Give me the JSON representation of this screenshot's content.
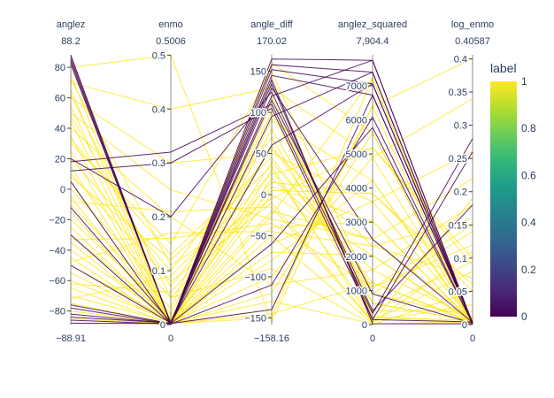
{
  "chart_data": {
    "type": "parcoords",
    "colorscale": "viridis",
    "colorscale_stops": [
      "#440154",
      "#482878",
      "#3e4989",
      "#31688e",
      "#26828e",
      "#1f9e89",
      "#35b779",
      "#6ece58",
      "#b5de2b",
      "#fde725"
    ],
    "color_by": "label",
    "colorbar": {
      "title": "label",
      "ticks": [
        "0",
        "0.2",
        "0.4",
        "0.6",
        "0.8",
        "1"
      ],
      "range": [
        0,
        1
      ]
    },
    "dimensions": [
      {
        "name": "anglez",
        "range": [
          -88.91,
          88.2
        ],
        "range_labels": {
          "max": "88.2",
          "min": "−88.91"
        },
        "ticks": [
          {
            "v": 80,
            "t": "80"
          },
          {
            "v": 60,
            "t": "60"
          },
          {
            "v": 40,
            "t": "40"
          },
          {
            "v": 20,
            "t": "20"
          },
          {
            "v": 0,
            "t": "0"
          },
          {
            "v": -20,
            "t": "−20"
          },
          {
            "v": -40,
            "t": "−40"
          },
          {
            "v": -60,
            "t": "−60"
          },
          {
            "v": -80,
            "t": "−80"
          }
        ]
      },
      {
        "name": "enmo",
        "range": [
          0,
          0.5006
        ],
        "range_labels": {
          "max": "0.5006",
          "min": "0"
        },
        "ticks": [
          {
            "v": 0.5,
            "t": "0.5"
          },
          {
            "v": 0.4,
            "t": "0.4"
          },
          {
            "v": 0.3,
            "t": "0.3"
          },
          {
            "v": 0.2,
            "t": "0.2"
          },
          {
            "v": 0.1,
            "t": "0.1"
          },
          {
            "v": 0,
            "t": "0"
          }
        ]
      },
      {
        "name": "angle_diff",
        "range": [
          -158.16,
          170.02
        ],
        "range_labels": {
          "max": "170.02",
          "min": "−158.16"
        },
        "ticks": [
          {
            "v": 150,
            "t": "150"
          },
          {
            "v": 100,
            "t": "100"
          },
          {
            "v": 50,
            "t": "50"
          },
          {
            "v": 0,
            "t": "0"
          },
          {
            "v": -50,
            "t": "−50"
          },
          {
            "v": -100,
            "t": "−100"
          },
          {
            "v": -150,
            "t": "−150"
          }
        ]
      },
      {
        "name": "anglez_squared",
        "range": [
          0,
          7904.4
        ],
        "range_labels": {
          "max": "7,904.4",
          "min": "0"
        },
        "ticks": [
          {
            "v": 7000,
            "t": "7000"
          },
          {
            "v": 6000,
            "t": "6000"
          },
          {
            "v": 5000,
            "t": "5000"
          },
          {
            "v": 4000,
            "t": "4000"
          },
          {
            "v": 3000,
            "t": "3000"
          },
          {
            "v": 2000,
            "t": "2000"
          },
          {
            "v": 1000,
            "t": "1000"
          },
          {
            "v": 0,
            "t": "0"
          }
        ]
      },
      {
        "name": "log_enmo",
        "range": [
          0,
          0.40587
        ],
        "range_labels": {
          "max": "0.40587",
          "min": "0"
        },
        "ticks": [
          {
            "v": 0.4,
            "t": "0.4"
          },
          {
            "v": 0.35,
            "t": "0.35"
          },
          {
            "v": 0.3,
            "t": "0.3"
          },
          {
            "v": 0.25,
            "t": "0.25"
          },
          {
            "v": 0.2,
            "t": "0.2"
          },
          {
            "v": 0.15,
            "t": "0.15"
          },
          {
            "v": 0.1,
            "t": "0.1"
          },
          {
            "v": 0.05,
            "t": "0.05"
          },
          {
            "v": 0,
            "t": "0"
          }
        ]
      }
    ],
    "lines": [
      {
        "values": [
          -85,
          0.002,
          -150,
          7225,
          0.002
        ],
        "label": 1
      },
      {
        "values": [
          -80,
          0.003,
          -140,
          6400,
          0.003
        ],
        "label": 1
      },
      {
        "values": [
          -75,
          0.001,
          -120,
          5625,
          0.001
        ],
        "label": 1
      },
      {
        "values": [
          -70,
          0.004,
          -100,
          4900,
          0.004
        ],
        "label": 1
      },
      {
        "values": [
          -65,
          0.002,
          -80,
          4225,
          0.002
        ],
        "label": 1
      },
      {
        "values": [
          -60,
          0.006,
          -60,
          3600,
          0.006
        ],
        "label": 1
      },
      {
        "values": [
          -55,
          0.003,
          -40,
          3025,
          0.003
        ],
        "label": 1
      },
      {
        "values": [
          -50,
          0.008,
          -20,
          2500,
          0.008
        ],
        "label": 1
      },
      {
        "values": [
          -45,
          0.002,
          0,
          2025,
          0.002
        ],
        "label": 1
      },
      {
        "values": [
          -40,
          0.01,
          20,
          1600,
          0.01
        ],
        "label": 1
      },
      {
        "values": [
          -35,
          0.004,
          40,
          1225,
          0.004
        ],
        "label": 1
      },
      {
        "values": [
          -30,
          0.012,
          60,
          900,
          0.012
        ],
        "label": 1
      },
      {
        "values": [
          -25,
          0.005,
          80,
          625,
          0.005
        ],
        "label": 1
      },
      {
        "values": [
          -20,
          0.02,
          100,
          400,
          0.02
        ],
        "label": 1
      },
      {
        "values": [
          -15,
          0.006,
          120,
          225,
          0.006
        ],
        "label": 1
      },
      {
        "values": [
          -10,
          0.03,
          140,
          100,
          0.03
        ],
        "label": 1
      },
      {
        "values": [
          -5,
          0.004,
          -130,
          25,
          0.004
        ],
        "label": 1
      },
      {
        "values": [
          0,
          0.05,
          -90,
          0,
          0.05
        ],
        "label": 1
      },
      {
        "values": [
          5,
          0.002,
          -50,
          25,
          0.002
        ],
        "label": 1
      },
      {
        "values": [
          10,
          0.08,
          -10,
          100,
          0.08
        ],
        "label": 1
      },
      {
        "values": [
          15,
          0.003,
          30,
          225,
          0.003
        ],
        "label": 1
      },
      {
        "values": [
          20,
          0.1,
          70,
          400,
          0.095
        ],
        "label": 1
      },
      {
        "values": [
          25,
          0.005,
          110,
          625,
          0.005
        ],
        "label": 1
      },
      {
        "values": [
          30,
          0.15,
          150,
          900,
          0.14
        ],
        "label": 1
      },
      {
        "values": [
          35,
          0.002,
          -145,
          1225,
          0.002
        ],
        "label": 1
      },
      {
        "values": [
          40,
          0.2,
          -110,
          1600,
          0.18
        ],
        "label": 1
      },
      {
        "values": [
          45,
          0.004,
          -70,
          2025,
          0.004
        ],
        "label": 1
      },
      {
        "values": [
          50,
          0.25,
          -30,
          2500,
          0.22
        ],
        "label": 1
      },
      {
        "values": [
          55,
          0.003,
          10,
          3025,
          0.003
        ],
        "label": 1
      },
      {
        "values": [
          60,
          0.3,
          50,
          3600,
          0.26
        ],
        "label": 1
      },
      {
        "values": [
          65,
          0.006,
          90,
          4225,
          0.006
        ],
        "label": 1
      },
      {
        "values": [
          70,
          0.4,
          130,
          4900,
          0.34
        ],
        "label": 1
      },
      {
        "values": [
          75,
          0.002,
          160,
          5625,
          0.002
        ],
        "label": 1
      },
      {
        "values": [
          80,
          0.5,
          -155,
          6400,
          0.4
        ],
        "label": 1
      },
      {
        "values": [
          85,
          0.001,
          -25,
          7225,
          0.001
        ],
        "label": 1
      },
      {
        "values": [
          62,
          0.05,
          5,
          3844,
          0.05
        ],
        "label": 1
      },
      {
        "values": [
          -62,
          0.06,
          15,
          3844,
          0.06
        ],
        "label": 1
      },
      {
        "values": [
          72,
          0.11,
          -5,
          5184,
          0.1
        ],
        "label": 1
      },
      {
        "values": [
          -72,
          0.09,
          25,
          5184,
          0.09
        ],
        "label": 1
      },
      {
        "values": [
          8,
          0.12,
          35,
          64,
          0.11
        ],
        "label": 1
      },
      {
        "values": [
          -8,
          0.21,
          -15,
          64,
          0.19
        ],
        "label": 1
      },
      {
        "values": [
          33,
          0.13,
          45,
          1089,
          0.12
        ],
        "label": 1
      },
      {
        "values": [
          -33,
          0.16,
          -35,
          1089,
          0.15
        ],
        "label": 1
      },
      {
        "values": [
          48,
          0.07,
          55,
          2304,
          0.07
        ],
        "label": 1
      },
      {
        "values": [
          -48,
          0.17,
          -45,
          2304,
          0.16
        ],
        "label": 1
      },
      {
        "values": [
          88,
          0.001,
          165,
          7744,
          0.001
        ],
        "label": 0
      },
      {
        "values": [
          86,
          0.002,
          158,
          7396,
          0.002
        ],
        "label": 0
      },
      {
        "values": [
          84,
          0.001,
          152,
          7056,
          0.001
        ],
        "label": 0
      },
      {
        "values": [
          82,
          0.003,
          145,
          6724,
          0.003
        ],
        "label": 0
      },
      {
        "values": [
          -88,
          0.002,
          120,
          7744,
          0.002
        ],
        "label": 0
      },
      {
        "values": [
          -86,
          0.001,
          95,
          7396,
          0.001
        ],
        "label": 0
      },
      {
        "values": [
          -84,
          0.003,
          60,
          7056,
          0.003
        ],
        "label": 0
      },
      {
        "values": [
          -82,
          0.002,
          -140,
          6724,
          0.002
        ],
        "label": 0
      },
      {
        "values": [
          -78,
          0.001,
          -110,
          6084,
          0.001
        ],
        "label": 0
      },
      {
        "values": [
          -76,
          0.002,
          -60,
          5776,
          0.002
        ],
        "label": 0
      },
      {
        "values": [
          12,
          0.3,
          105,
          144,
          0.26
        ],
        "label": 0
      },
      {
        "values": [
          18,
          0.32,
          110,
          324,
          0.28
        ],
        "label": 0
      },
      {
        "values": [
          20,
          0.2,
          125,
          400,
          0.18
        ],
        "label": 0
      },
      {
        "values": [
          -12,
          0.004,
          135,
          144,
          0.004
        ],
        "label": 0
      },
      {
        "values": [
          5,
          0.001,
          140,
          25,
          0.001
        ],
        "label": 0
      },
      {
        "values": [
          -30,
          0.002,
          115,
          900,
          0.002
        ],
        "label": 0
      },
      {
        "values": [
          -50,
          0.003,
          130,
          2500,
          0.003
        ],
        "label": 0
      }
    ]
  }
}
